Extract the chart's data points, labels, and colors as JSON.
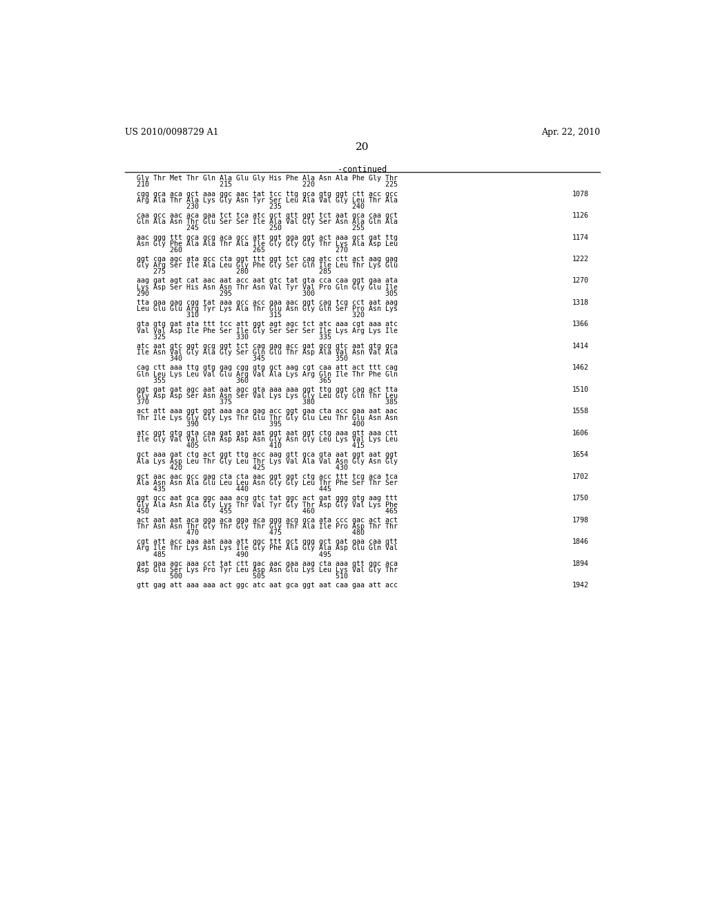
{
  "header_left": "US 2010/0098729 A1",
  "header_right": "Apr. 22, 2010",
  "page_number": "20",
  "continued_label": "-continued",
  "background_color": "#ffffff",
  "text_color": "#000000",
  "blocks": [
    {
      "num": null,
      "dna": null,
      "aa": "Gly Thr Met Thr Gln Ala Glu Gly His Phe Ala Asn Ala Phe Gly Thr",
      "pos": "210                 215                 220                 225"
    },
    {
      "num": "1078",
      "dna": "cgg gca aca gct aaa ggc aac tat tcc ttg gca gtg ggt ctt acc gcc",
      "aa": "Arg Ala Thr Ala Lys Gly Asn Tyr Ser Leu Ala Val Gly Leu Thr Ala",
      "pos": "            230                 235                 240"
    },
    {
      "num": "1126",
      "dna": "caa gcc aac aca gaa tct tca atc gct gtt ggt tct aat gca caa gct",
      "aa": "Gln Ala Asn Thr Glu Ser Ser Ile Ala Val Gly Ser Asn Ala Gln Ala",
      "pos": "            245                 250                 255"
    },
    {
      "num": "1174",
      "dna": "aac ggg ttt gca gcg aca gcc att ggt gga ggt act aaa gct gat ttg",
      "aa": "Asn Gly Phe Ala Ala Thr Ala Ile Gly Gly Gly Thr Lys Ala Asp Leu",
      "pos": "        260                 265                 270"
    },
    {
      "num": "1222",
      "dna": "ggt cga agc ata gcc cta ggt ttt ggt tct cag atc ctt act aag gag",
      "aa": "Gly Arg Ser Ile Ala Leu Gly Phe Gly Ser Gln Ile Leu Thr Lys Glu",
      "pos": "    275                 280                 285"
    },
    {
      "num": "1270",
      "dna": "aag gat agt cat aac aat acc aat gtc tat gta cca caa ggt gaa ata",
      "aa": "Lys Asp Ser His Asn Asn Thr Asn Val Tyr Val Pro Gln Gly Glu Ile",
      "pos": "290                 295                 300                 305"
    },
    {
      "num": "1318",
      "dna": "tta gaa gag cgg tat aaa gcc acc gaa aac ggt cag tcg cct aat aag",
      "aa": "Leu Glu Glu Arg Tyr Lys Ala Thr Glu Asn Gly Gln Ser Pro Asn Lys",
      "pos": "            310                 315                 320"
    },
    {
      "num": "1366",
      "dna": "gta gtg gat ata ttt tcc att ggt agt agc tct atc aaa cgt aaa atc",
      "aa": "Val Val Asp Ile Phe Ser Ile Gly Ser Ser Ser Ile Lys Arg Lys Ile",
      "pos": "    325                 330                 335"
    },
    {
      "num": "1414",
      "dna": "atc aat gtc ggt gcg ggt tct cag gag acc gat gcg gtc aat gtg gca",
      "aa": "Ile Asn Val Gly Ala Gly Ser Gln Glu Thr Asp Ala Val Asn Val Ala",
      "pos": "        340                 345                 350"
    },
    {
      "num": "1462",
      "dna": "cag ctt aaa ttg gtg gag cgg gtg gct aag cgt caa att act ttt cag",
      "aa": "Gln Leu Lys Leu Val Glu Arg Val Ala Lys Arg Gln Ile Thr Phe Gln",
      "pos": "    355                 360                 365"
    },
    {
      "num": "1510",
      "dna": "ggt gat gat agc aat aat agc gta aaa aaa ggt ttg ggt cag act tta",
      "aa": "Gly Asp Asp Ser Asn Asn Ser Val Lys Lys Gly Leu Gly Gln Thr Leu",
      "pos": "370                 375                 380                 385"
    },
    {
      "num": "1558",
      "dna": "act att aaa ggt ggt aaa aca gag acc ggt gaa cta acc gaa aat aac",
      "aa": "Thr Ile Lys Gly Gly Lys Thr Glu Thr Gly Glu Leu Thr Glu Asn Asn",
      "pos": "            390                 395                 400"
    },
    {
      "num": "1606",
      "dna": "atc ggt gtg gta caa gat gat aat ggt aat ggt ctg aaa gtt aaa ctt",
      "aa": "Ile Gly Val Val Gln Asp Asp Asn Gly Asn Gly Leu Lys Val Lys Leu",
      "pos": "            405                 410                 415"
    },
    {
      "num": "1654",
      "dna": "gct aaa gat ctg act ggt ttg acc aag gtt gca gta aat ggt aat ggt",
      "aa": "Ala Lys Asp Leu Thr Gly Leu Thr Lys Val Ala Val Asn Gly Asn Gly",
      "pos": "        420                 425                 430"
    },
    {
      "num": "1702",
      "dna": "gct aac aac gcc gag cta cta aac ggt ggt ctg acc ttt tcg aca tca",
      "aa": "Ala Asn Asn Ala Glu Leu Leu Asn Gly Gly Leu Thr Phe Ser Thr Ser",
      "pos": "    435                 440                 445"
    },
    {
      "num": "1750",
      "dna": "ggt gcc aat gca ggc aaa acg gtc tat ggc act gat ggg gtg aag ttt",
      "aa": "Gly Ala Asn Ala Gly Lys Thr Val Tyr Gly Thr Asp Gly Val Lys Phe",
      "pos": "450                 455                 460                 465"
    },
    {
      "num": "1798",
      "dna": "act aat aat aca gga aca gga aca ggg acg gca ata ccc gac act act",
      "aa": "Thr Asn Asn Thr Gly Thr Gly Thr Gly Thr Ala Ile Pro Asp Thr Thr",
      "pos": "            470                 475                 480"
    },
    {
      "num": "1846",
      "dna": "cgt att acc aaa aat aaa att ggc ttt gct ggg gct gat gaa caa gtt",
      "aa": "Arg Ile Thr Lys Asn Lys Ile Gly Phe Ala Gly Ala Asp Glu Gln Val",
      "pos": "    485                 490                 495"
    },
    {
      "num": "1894",
      "dna": "gat gaa agc aaa cct tat ctt gac aac gaa aag cta aaa gtt ggc aca",
      "aa": "Asp Glu Ser Lys Pro Tyr Leu Asp Asn Glu Lys Leu Lys Val Gly Thr",
      "pos": "        500                 505                 510"
    },
    {
      "num": "1942",
      "dna": "gtt gag att aaa aaa act ggc atc aat gca ggt aat caa gaa att acc",
      "aa": null,
      "pos": null
    }
  ]
}
